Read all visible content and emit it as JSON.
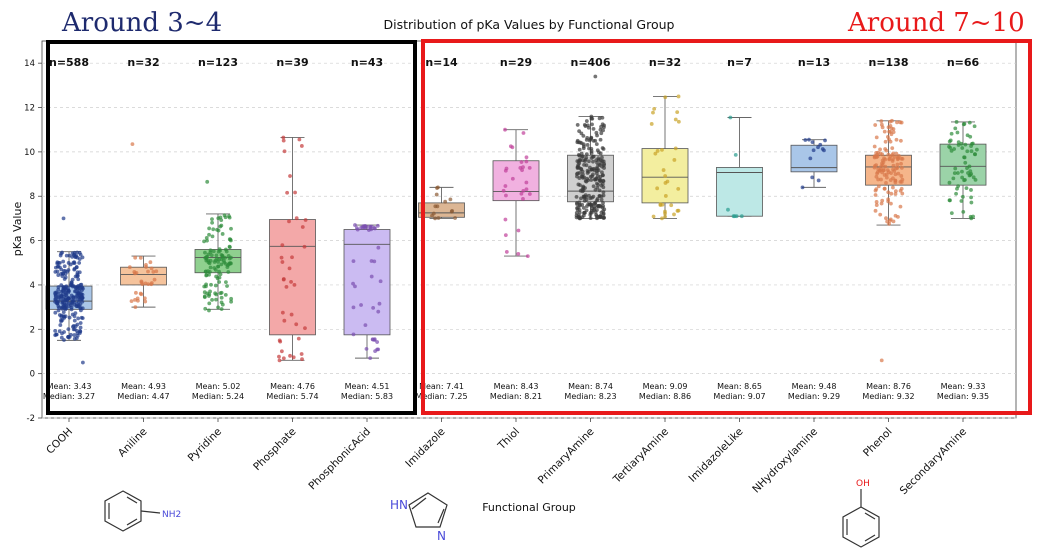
{
  "chart_data": {
    "type": "box",
    "title": "Distribution of pKa Values by Functional Group",
    "xlabel": "Functional Group",
    "ylabel": "pKa Value",
    "ylim": [
      -2,
      15
    ],
    "yticks": [
      -2,
      0,
      2,
      4,
      6,
      8,
      10,
      12,
      14
    ],
    "grid": "horizontal-dashed",
    "groups": [
      {
        "name": "COOH",
        "n_label": "n=588",
        "n": 588,
        "q1": 2.9,
        "median": 3.27,
        "q3": 3.95,
        "whisker_low": 1.5,
        "whisker_high": 5.5,
        "min": 0.5,
        "max": 7.0,
        "mean_label": "Mean: 3.43",
        "median_label": "Median: 3.27",
        "color": "#a9c6e8",
        "dot_color": "#1f3a8a"
      },
      {
        "name": "Aniline",
        "n_label": "n=32",
        "n": 32,
        "q1": 4.0,
        "median": 4.47,
        "q3": 4.8,
        "whisker_low": 3.0,
        "whisker_high": 5.3,
        "min": 3.0,
        "max": 10.35,
        "mean_label": "Mean: 4.93",
        "median_label": "Median: 4.47",
        "color": "#f5c39c",
        "dot_color": "#d9774a"
      },
      {
        "name": "Pyridine",
        "n_label": "n=123",
        "n": 123,
        "q1": 4.55,
        "median": 5.24,
        "q3": 5.6,
        "whisker_low": 2.9,
        "whisker_high": 7.2,
        "min": 2.85,
        "max": 8.65,
        "mean_label": "Mean: 5.02",
        "median_label": "Median: 5.24",
        "color": "#8fd08f",
        "dot_color": "#2e8b3a"
      },
      {
        "name": "Phosphate",
        "n_label": "n=39",
        "n": 39,
        "q1": 1.75,
        "median": 5.74,
        "q3": 6.95,
        "whisker_low": 0.6,
        "whisker_high": 10.65,
        "min": 0.6,
        "max": 10.65,
        "mean_label": "Mean: 4.76",
        "median_label": "Median: 5.74",
        "color": "#f3a8a8",
        "dot_color": "#c43b3b"
      },
      {
        "name": "PhosphonicAcid",
        "n_label": "n=43",
        "n": 43,
        "q1": 1.75,
        "median": 5.83,
        "q3": 6.5,
        "whisker_low": 0.7,
        "whisker_high": 6.7,
        "min": 0.7,
        "max": 6.7,
        "mean_label": "Mean: 4.51",
        "median_label": "Median: 5.83",
        "color": "#cbbbf2",
        "dot_color": "#7a4fb0"
      },
      {
        "name": "Imidazole",
        "n_label": "n=14",
        "n": 14,
        "q1": 7.05,
        "median": 7.25,
        "q3": 7.7,
        "whisker_low": 7.0,
        "whisker_high": 8.4,
        "min": 7.0,
        "max": 8.4,
        "mean_label": "Mean: 7.41",
        "median_label": "Median: 7.25",
        "color": "#dcb694",
        "dot_color": "#8a5a33"
      },
      {
        "name": "Thiol",
        "n_label": "n=29",
        "n": 29,
        "q1": 7.8,
        "median": 8.21,
        "q3": 9.6,
        "whisker_low": 5.3,
        "whisker_high": 11.0,
        "min": 5.3,
        "max": 11.0,
        "mean_label": "Mean: 8.43",
        "median_label": "Median: 8.21",
        "color": "#f1b1e0",
        "dot_color": "#c0409a"
      },
      {
        "name": "PrimaryAmine",
        "n_label": "n=406",
        "n": 406,
        "q1": 7.75,
        "median": 8.23,
        "q3": 9.85,
        "whisker_low": 7.0,
        "whisker_high": 11.6,
        "min": 7.0,
        "max": 13.4,
        "mean_label": "Mean: 8.74",
        "median_label": "Median: 8.23",
        "color": "#cfcfcf",
        "dot_color": "#3a3a3a"
      },
      {
        "name": "TertiaryAmine",
        "n_label": "n=32",
        "n": 32,
        "q1": 7.7,
        "median": 8.86,
        "q3": 10.15,
        "whisker_low": 7.0,
        "whisker_high": 12.5,
        "min": 7.0,
        "max": 12.5,
        "mean_label": "Mean: 9.09",
        "median_label": "Median: 8.86",
        "color": "#f3ee9f",
        "dot_color": "#c9a227"
      },
      {
        "name": "ImidazoleLike",
        "n_label": "n=7",
        "n": 7,
        "q1": 7.1,
        "median": 9.07,
        "q3": 9.3,
        "whisker_low": 7.1,
        "whisker_high": 11.55,
        "min": 7.1,
        "max": 11.55,
        "mean_label": "Mean: 8.65",
        "median_label": "Median: 9.07",
        "color": "#bde8e6",
        "dot_color": "#2a9d8f"
      },
      {
        "name": "NHydroxylamine",
        "n_label": "n=13",
        "n": 13,
        "q1": 9.1,
        "median": 9.29,
        "q3": 10.3,
        "whisker_low": 8.4,
        "whisker_high": 10.55,
        "min": 8.4,
        "max": 10.55,
        "mean_label": "Mean: 9.48",
        "median_label": "Median: 9.29",
        "color": "#a9c6e8",
        "dot_color": "#1f3a8a"
      },
      {
        "name": "Phenol",
        "n_label": "n=138",
        "n": 138,
        "q1": 8.5,
        "median": 9.32,
        "q3": 9.85,
        "whisker_low": 6.7,
        "whisker_high": 11.4,
        "min": 0.6,
        "max": 11.4,
        "mean_label": "Mean: 8.76",
        "median_label": "Median: 9.32",
        "color": "#f5b58a",
        "dot_color": "#d9774a"
      },
      {
        "name": "SecondaryAmine",
        "n_label": "n=66",
        "n": 66,
        "q1": 8.5,
        "median": 9.35,
        "q3": 10.35,
        "whisker_low": 7.0,
        "whisker_high": 11.35,
        "min": 7.0,
        "max": 11.35,
        "mean_label": "Mean: 9.33",
        "median_label": "Median: 9.35",
        "color": "#9bd3a8",
        "dot_color": "#2e8b3a"
      }
    ],
    "annotations": [
      {
        "text": "Around 3~4",
        "color": "#1e2a6e",
        "frame_color": "#000000",
        "from_group": 0,
        "to_group": 4
      },
      {
        "text": "Around 7~10",
        "color": "#e8191a",
        "frame_color": "#e8191a",
        "from_group": 5,
        "to_group": 12
      }
    ],
    "structures": [
      {
        "name": "aniline",
        "label": "NH2"
      },
      {
        "name": "imidazole",
        "label_top": "HN",
        "label_bottom": "N"
      },
      {
        "name": "phenol",
        "label": "OH"
      }
    ]
  }
}
